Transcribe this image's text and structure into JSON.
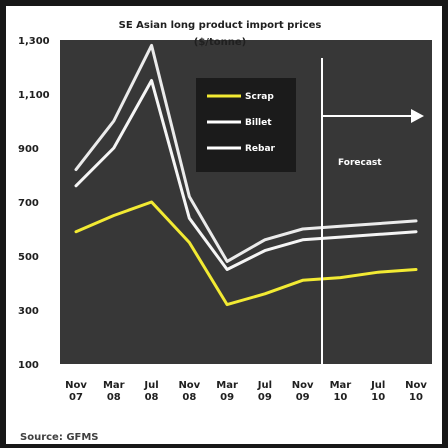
{
  "chart_data": {
    "type": "line",
    "title": "SE Asian long product import prices",
    "subtitle": "($/tonne)",
    "x": [
      "Nov 07",
      "Mar 08",
      "Jul 08",
      "Nov 08",
      "Mar 09",
      "Jul 09",
      "Nov 09",
      "Mar 10",
      "Jul 10",
      "Nov 10"
    ],
    "series": [
      {
        "name": "Scrap",
        "color": "#f2ea33",
        "values": [
          590,
          650,
          700,
          550,
          320,
          360,
          410,
          420,
          440,
          450
        ]
      },
      {
        "name": "Billet",
        "color": "#2b2b2b",
        "values": [
          760,
          900,
          1150,
          640,
          450,
          520,
          560,
          570,
          580,
          590
        ]
      },
      {
        "name": "Rebar",
        "color": "#2b2b2b",
        "values": [
          820,
          1000,
          1280,
          720,
          480,
          560,
          600,
          610,
          620,
          630
        ]
      }
    ],
    "ylim": [
      100,
      1300
    ],
    "yticks": [
      "1,300",
      "1,100",
      "900",
      "700",
      "500",
      "300",
      "100"
    ],
    "legend": [
      "Scrap",
      "Billet",
      "Rebar"
    ],
    "legend_position": "top-right",
    "forecast_label": "Forecast",
    "forecast_start": "Nov 09",
    "grid": false
  },
  "source": "Source: GFMS",
  "colors": {
    "background": "#ffffff",
    "frame": "#171717",
    "plot_background": "#373737",
    "legend_background": "#1b1b1b",
    "accent": "#ffffff"
  }
}
